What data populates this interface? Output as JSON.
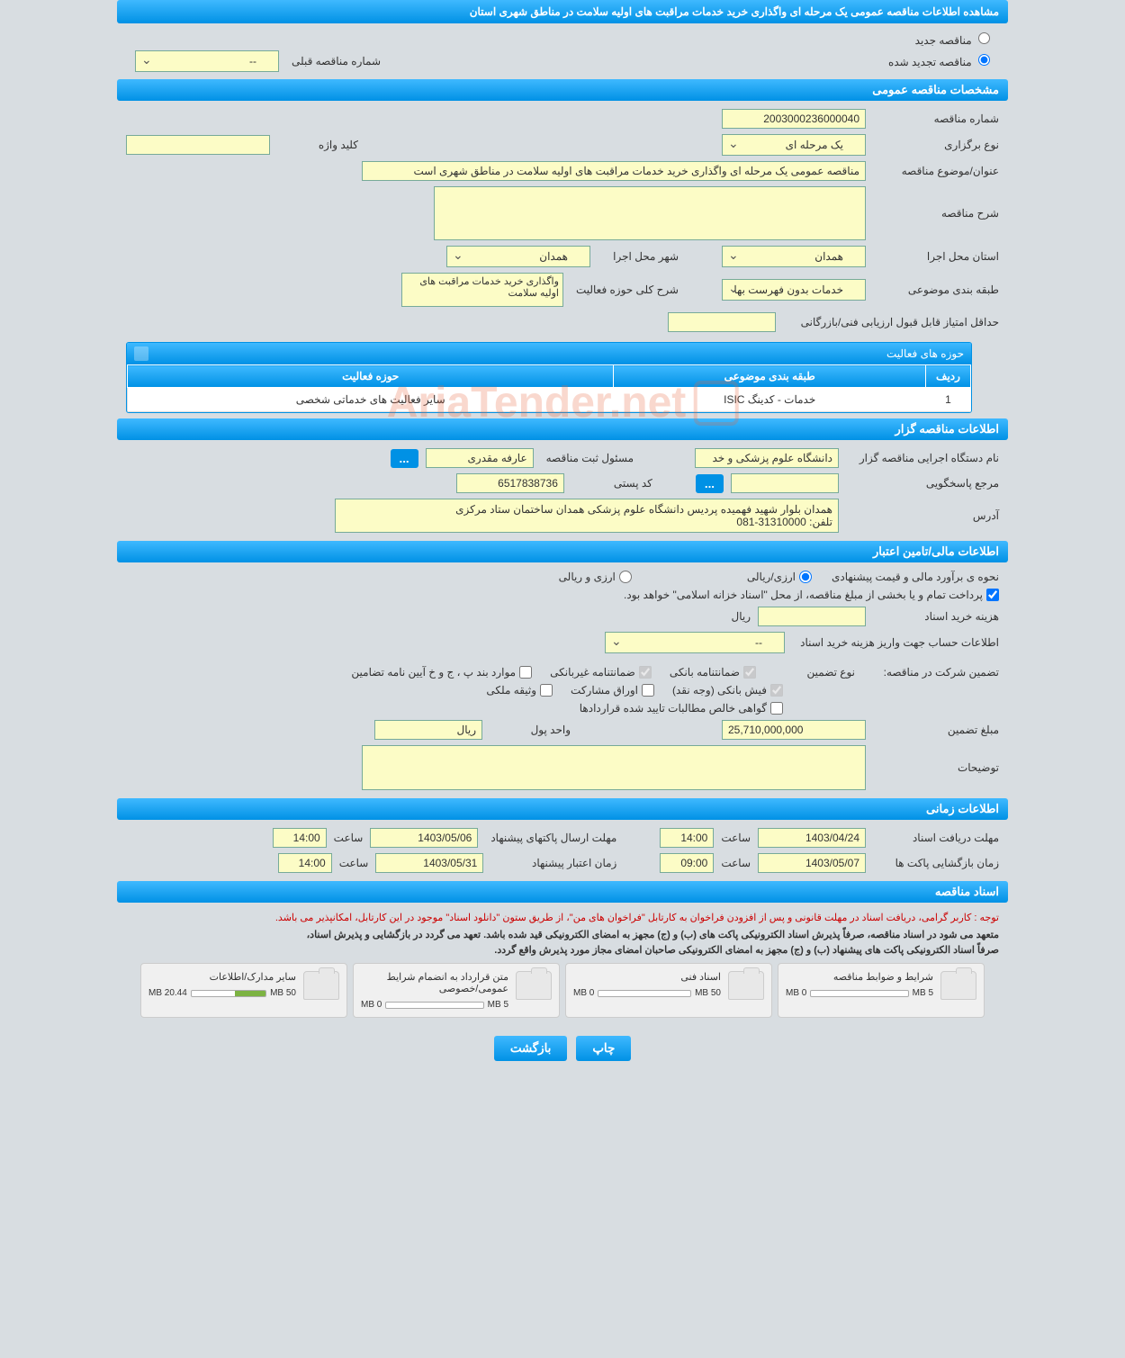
{
  "page_title": "مشاهده اطلاعات مناقصه عمومی یک مرحله ای واگذاری خرید خدمات مراقبت های اولیه سلامت در مناطق شهری استان",
  "radios": {
    "new": "مناقصه جدید",
    "renewed": "مناقصه تجدید شده",
    "prev_label": "شماره مناقصه قبلی",
    "prev_value": "--"
  },
  "sections": {
    "general": "مشخصات مناقصه عمومی",
    "tenderer": "اطلاعات مناقصه گزار",
    "financial": "اطلاعات مالی/تامین اعتبار",
    "timing": "اطلاعات زمانی",
    "docs": "اسناد مناقصه"
  },
  "general": {
    "number_label": "شماره مناقصه",
    "number": "2003000236000040",
    "keyword_label": "کلید واژه",
    "keyword": "",
    "type_label": "نوع برگزاری",
    "type": "یک مرحله ای",
    "subject_label": "عنوان/موضوع مناقصه",
    "subject": "مناقصه عمومی یک مرحله ای واگذاری خرید خدمات مراقبت های اولیه سلامت در مناطق شهری است",
    "desc_label": "شرح مناقصه",
    "desc": "",
    "province_label": "استان محل اجرا",
    "province": "همدان",
    "city_label": "شهر محل اجرا",
    "city": "همدان",
    "category_label": "طبقه بندی موضوعی",
    "category": "خدمات بدون فهرست بها",
    "scope_label": "شرح کلی حوزه فعالیت",
    "scope_lines": "واگذاری خرید خدمات\nمراقبت های اولیه سلامت",
    "min_score_label": "حداقل امتیاز قابل قبول ارزیابی فنی/بازرگانی",
    "min_score": ""
  },
  "activities": {
    "title": "حوزه های فعالیت",
    "cols": {
      "row": "ردیف",
      "category": "طبقه بندی موضوعی",
      "scope": "حوزه فعالیت"
    },
    "row1": {
      "n": "1",
      "cat": "خدمات - کدینگ ISIC",
      "scope": "سایر فعالیت های خدماتی شخصی"
    }
  },
  "tenderer": {
    "org_label": "نام دستگاه اجرایی مناقصه گزار",
    "org": "دانشگاه علوم پزشکی و خد",
    "reg_label": "مسئول ثبت مناقصه",
    "reg": "عارفه مقدری",
    "contact_label": "مرجع پاسخگویی",
    "contact": "",
    "postal_label": "کد پستی",
    "postal": "6517838736",
    "address_label": "آدرس",
    "address": "همدان بلوار شهید فهمیده پردیس دانشگاه علوم پزشکی همدان ساختمان ستاد مرکزی\nتلفن: 31310000-081",
    "dots": "..."
  },
  "financial": {
    "est_label": "نحوه ی برآورد مالی و قیمت پیشنهادی",
    "currency_rial": "ارزی/ریالی",
    "currency_both": "ارزی و ریالی",
    "payment_note": "پرداخت تمام و یا بخشی از مبلغ مناقصه، از محل \"اسناد خزانه اسلامی\" خواهد بود.",
    "doc_cost_label": "هزینه خرید اسناد",
    "doc_cost": "",
    "unit_rial": "ریال",
    "account_label": "اطلاعات حساب جهت واریز هزینه خرید اسناد",
    "account": "--",
    "guarantee_label": "تضمین شرکت در مناقصه:",
    "guarantee_type_label": "نوع تضمین",
    "g_bank": "ضمانتنامه بانکی",
    "g_nonbank": "ضمانتنامه غیربانکی",
    "g_bylaw": "موارد بند پ ، ج و خ آیین نامه تضامین",
    "g_cash": "فیش بانکی (وجه نقد)",
    "g_securities": "اوراق مشارکت",
    "g_property": "وثیقه ملکی",
    "g_cert": "گواهی خالص مطالبات تایید شده قراردادها",
    "amount_label": "مبلغ تضمین",
    "amount": "25,710,000,000",
    "money_unit_label": "واحد پول",
    "money_unit": "ریال",
    "notes_label": "توضیحات",
    "notes": ""
  },
  "timing": {
    "receive_label": "مهلت دریافت اسناد",
    "receive_date": "1403/04/24",
    "receive_time": "14:00",
    "send_label": "مهلت ارسال پاکتهای پیشنهاد",
    "send_date": "1403/05/06",
    "send_time": "14:00",
    "open_label": "زمان بازگشایی پاکت ها",
    "open_date": "1403/05/07",
    "open_time": "09:00",
    "valid_label": "زمان اعتبار پیشنهاد",
    "valid_date": "1403/05/31",
    "valid_time": "14:00",
    "time_label": "ساعت"
  },
  "docs": {
    "warn": "توجه : کاربر گرامی، دریافت اسناد در مهلت قانونی و پس از افزودن فراخوان به کارتابل \"فراخوان های من\"، از طریق ستون \"دانلود اسناد\" موجود در این کارتابل، امکانپذیر می باشد.",
    "note1": "متعهد می شود در اسناد مناقصه، صرفاً پذیرش اسناد الکترونیکی پاکت های (ب) و (ج) مجهز به امضای الکترونیکی قید شده باشد. تعهد می گردد در بازگشایی و پذیرش اسناد،",
    "note2": "صرفاً اسناد الکترونیکی پاکت های پیشنهاد (ب) و (ج) مجهز به امضای الکترونیکی صاحبان امضای مجاز مورد پذیرش واقع گردد.",
    "tiles": [
      {
        "title": "شرایط و ضوابط مناقصه",
        "max": "5 MB",
        "used": "0 MB",
        "pct": 0
      },
      {
        "title": "اسناد فنی",
        "max": "50 MB",
        "used": "0 MB",
        "pct": 0
      },
      {
        "title": "متن قرارداد به انضمام شرایط عمومی/خصوصی",
        "max": "5 MB",
        "used": "0 MB",
        "pct": 0
      },
      {
        "title": "سایر مدارک/اطلاعات",
        "max": "50 MB",
        "used": "20.44 MB",
        "pct": 41
      }
    ]
  },
  "buttons": {
    "print": "چاپ",
    "back": "بازگشت"
  },
  "watermark": "AriaTender.net"
}
